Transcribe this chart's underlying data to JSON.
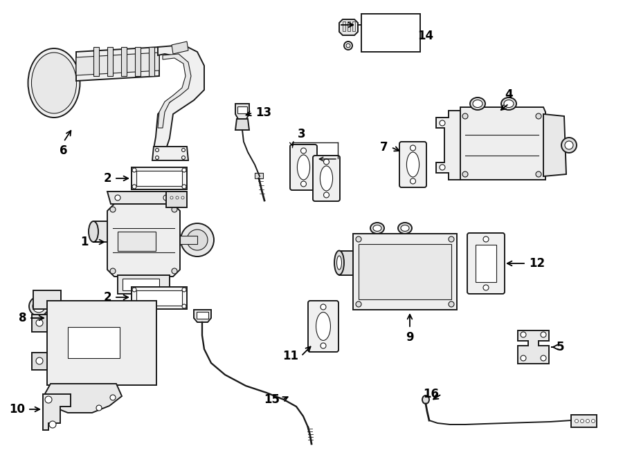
{
  "bg_color": "#ffffff",
  "line_color": "#1a1a1a",
  "fig_width": 9.0,
  "fig_height": 6.61,
  "dpi": 100,
  "components": {
    "part1_label": "1",
    "part2_label": "2",
    "part3_label": "3",
    "part4_label": "4",
    "part5_label": "5",
    "part6_label": "6",
    "part7_label": "7",
    "part8_label": "8",
    "part9_label": "9",
    "part10_label": "10",
    "part11_label": "11",
    "part12_label": "12",
    "part13_label": "13",
    "part14_label": "14",
    "part15_label": "15",
    "part16_label": "16"
  }
}
